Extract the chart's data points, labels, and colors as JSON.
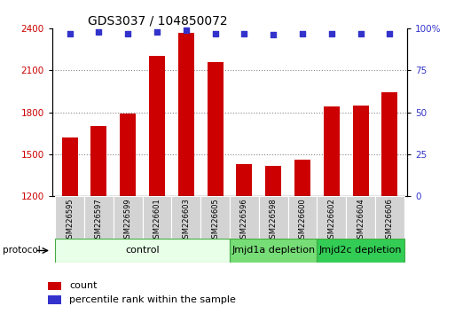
{
  "title": "GDS3037 / 104850072",
  "categories": [
    "GSM226595",
    "GSM226597",
    "GSM226599",
    "GSM226601",
    "GSM226603",
    "GSM226605",
    "GSM226596",
    "GSM226598",
    "GSM226600",
    "GSM226602",
    "GSM226604",
    "GSM226606"
  ],
  "bar_values": [
    1620,
    1700,
    1790,
    2200,
    2370,
    2160,
    1430,
    1420,
    1460,
    1840,
    1850,
    1940
  ],
  "percentile_values": [
    97,
    98,
    97,
    98,
    99,
    97,
    97,
    96,
    97,
    97,
    97,
    97
  ],
  "bar_color": "#cc0000",
  "dot_color": "#3333cc",
  "ylim_left": [
    1200,
    2400
  ],
  "ylim_right": [
    0,
    100
  ],
  "yticks_left": [
    1200,
    1500,
    1800,
    2100,
    2400
  ],
  "yticks_right": [
    0,
    25,
    50,
    75,
    100
  ],
  "left_tick_color": "#cc0000",
  "right_tick_color": "#3333cc",
  "grid_color": "#888888",
  "bg_color": "#ffffff",
  "group_configs": [
    {
      "indices": [
        0,
        1,
        2,
        3,
        4,
        5
      ],
      "label": "control",
      "facecolor": "#e8ffe8",
      "edgecolor": "#44aa44"
    },
    {
      "indices": [
        6,
        7,
        8
      ],
      "label": "Jmjd1a depletion",
      "facecolor": "#77dd77",
      "edgecolor": "#44aa44"
    },
    {
      "indices": [
        9,
        10,
        11
      ],
      "label": "Jmjd2c depletion",
      "facecolor": "#33cc55",
      "edgecolor": "#44aa44"
    }
  ],
  "protocol_label": "protocol",
  "legend_count_label": "count",
  "legend_pct_label": "percentile rank within the sample",
  "title_fontsize": 10,
  "tick_fontsize": 7.5,
  "cat_fontsize": 6,
  "group_label_fontsize": 8,
  "bar_width": 0.55
}
